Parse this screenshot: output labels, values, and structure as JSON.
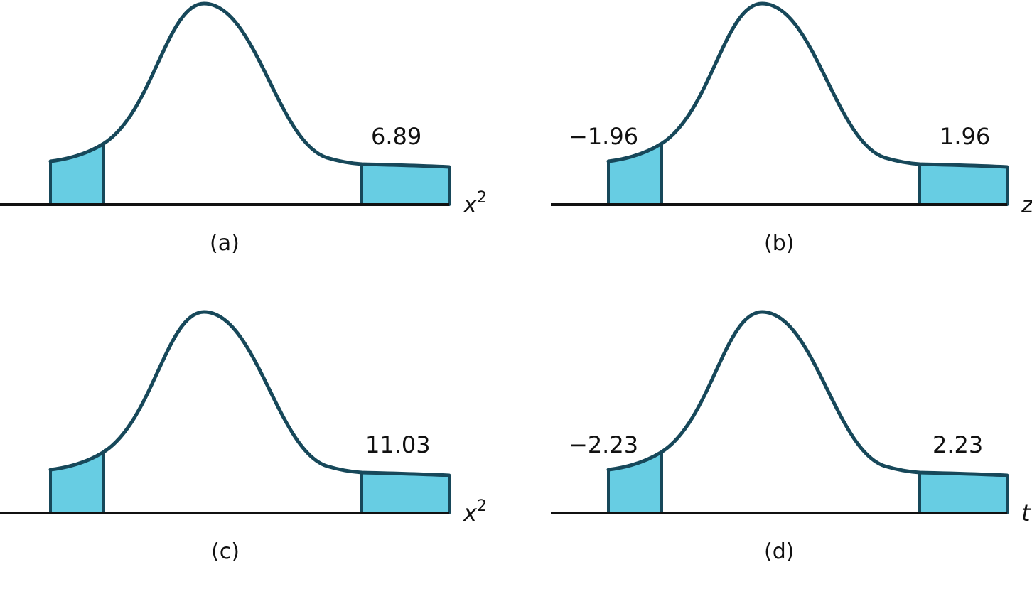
{
  "panels": [
    {
      "caption": "(a)",
      "axis_var": "x",
      "axis_sup": "2",
      "left_value": "",
      "right_value": "6.89"
    },
    {
      "caption": "(b)",
      "axis_var": "z",
      "axis_sup": "",
      "left_value": "−1.96",
      "right_value": "1.96"
    },
    {
      "caption": "(c)",
      "axis_var": "x",
      "axis_sup": "2",
      "left_value": "",
      "right_value": "11.03"
    },
    {
      "caption": "(d)",
      "axis_var": "t",
      "axis_sup": "",
      "left_value": "−2.23",
      "right_value": "2.23"
    }
  ],
  "colors": {
    "curve": "#17485a",
    "tail_fill": "#67cde3",
    "axis": "#111111"
  }
}
